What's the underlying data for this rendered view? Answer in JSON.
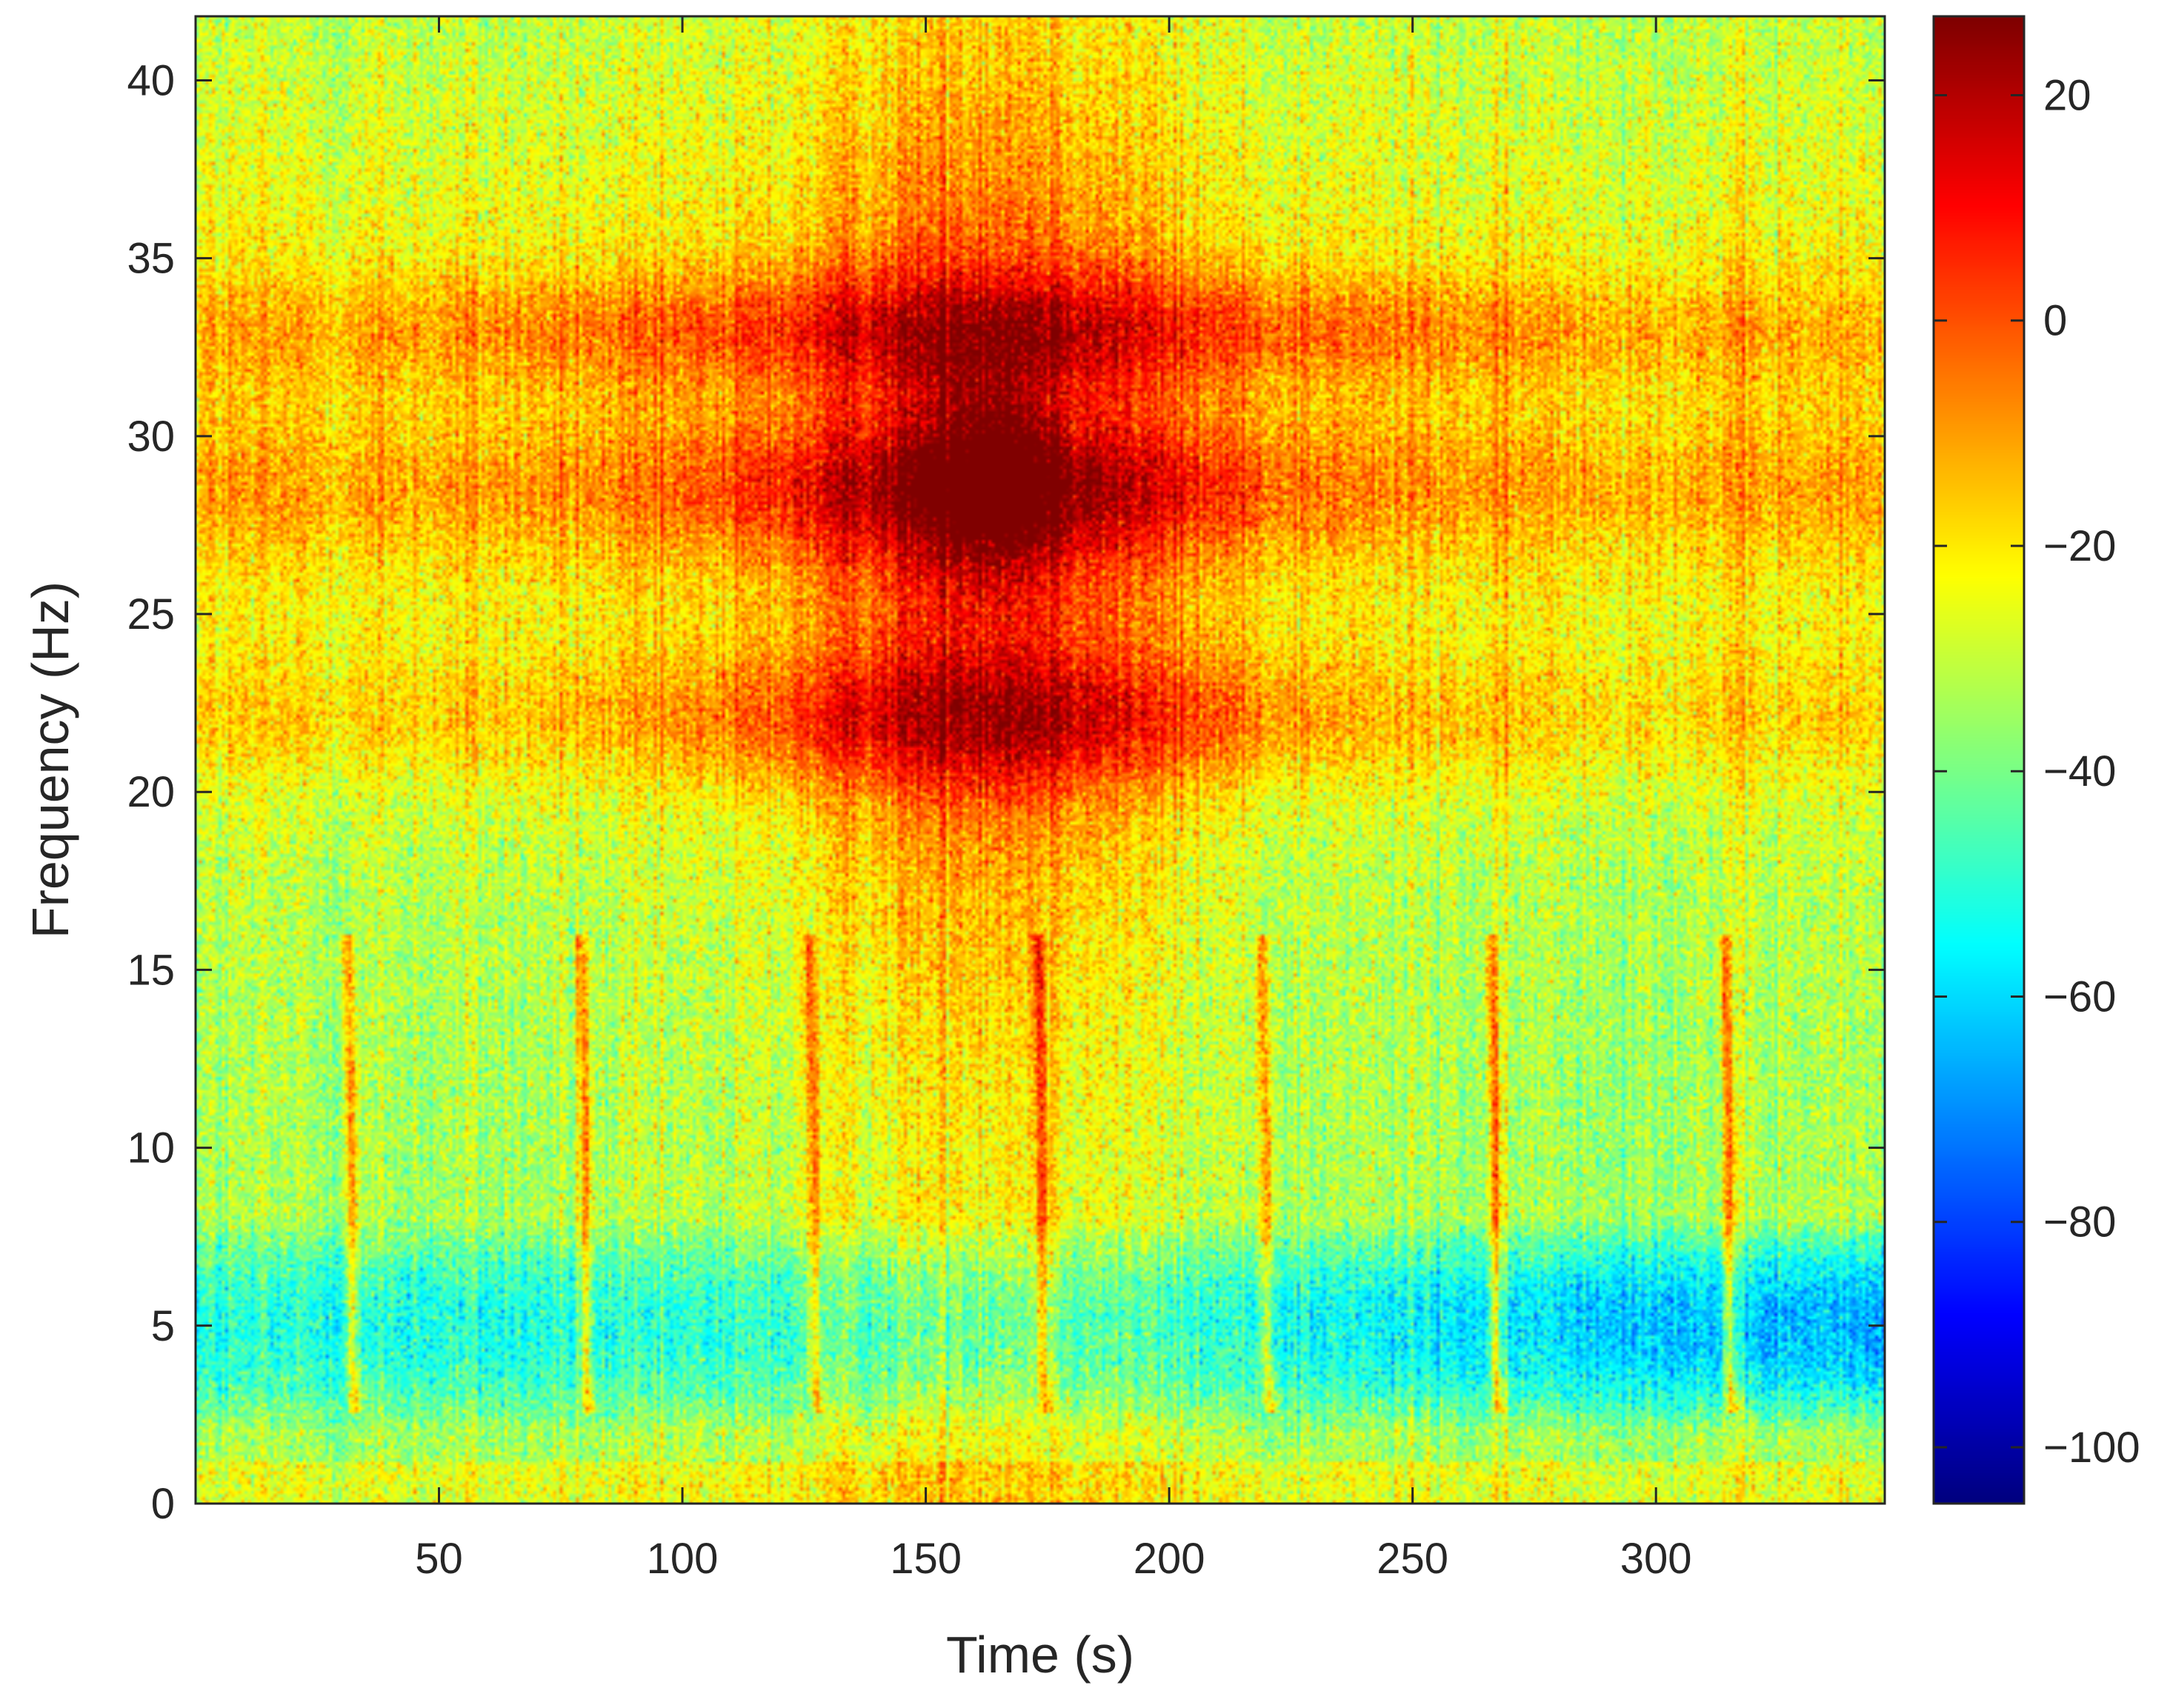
{
  "chart_data": {
    "type": "heatmap",
    "title": "",
    "xlabel": "Time (s)",
    "ylabel": "Frequency (Hz)",
    "xlim": [
      0,
      347
    ],
    "ylim": [
      0,
      41.8
    ],
    "x_ticks": [
      50,
      100,
      150,
      200,
      250,
      300
    ],
    "y_ticks": [
      0,
      5,
      10,
      15,
      20,
      25,
      30,
      35,
      40
    ],
    "colorbar": {
      "colormap": "jet",
      "limits": [
        -105,
        27
      ],
      "ticks": [
        20,
        0,
        -20,
        -40,
        -60,
        -80,
        -100
      ],
      "tick_labels": [
        "20",
        "0",
        "−20",
        "−40",
        "−60",
        "−80",
        "−100"
      ]
    },
    "grid": false,
    "features": {
      "horizontal_bands_hz": [
        33,
        28.5,
        22
      ],
      "band_peak_levels": [
        -2,
        5,
        5
      ],
      "hotspot": {
        "time_s": 163,
        "freq_hz": 29,
        "level": 22
      },
      "vertical_streaks_time_s": [
        32,
        80,
        127,
        174,
        220,
        267,
        315
      ],
      "low_frequency_quiet_band_hz": [
        2,
        8
      ],
      "background_level": -40
    }
  }
}
